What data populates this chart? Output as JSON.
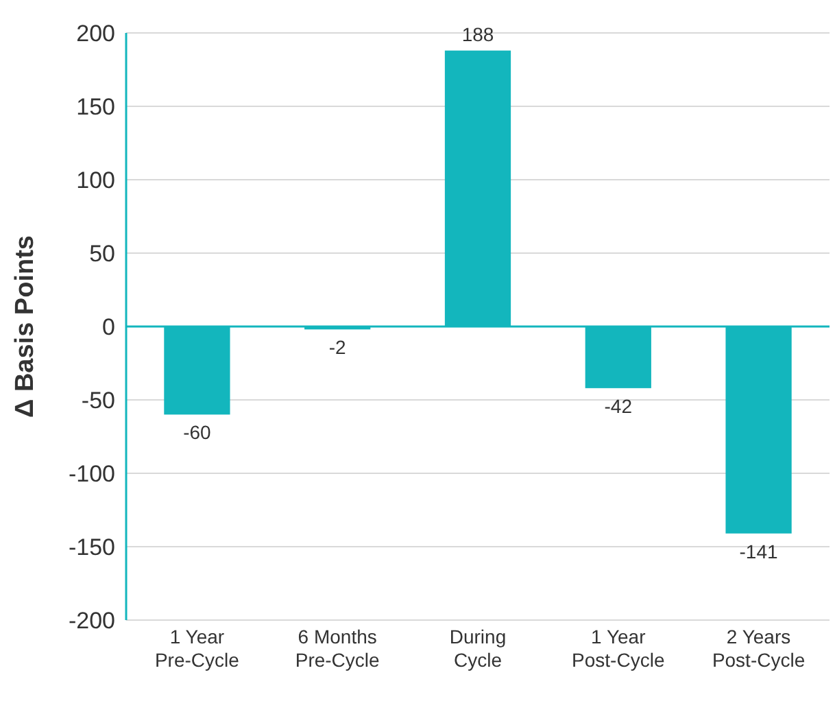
{
  "chart_data": {
    "type": "bar",
    "ylabel": "Δ Basis Points",
    "categories": [
      "1 Year\nPre-Cycle",
      "6 Months\nPre-Cycle",
      "During\nCycle",
      "1 Year\nPost-Cycle",
      "2 Years\nPost-Cycle"
    ],
    "values": [
      -60,
      -2,
      188,
      -42,
      -141
    ],
    "color": "#13b6bd",
    "ylim": [
      -200,
      200
    ],
    "yticks": [
      -200,
      -150,
      -100,
      -50,
      0,
      50,
      100,
      150,
      200
    ],
    "grid": "y",
    "data_labels": true,
    "ref_lines": [
      {
        "axis": "y",
        "value": 0,
        "color": "#13b6bd"
      }
    ]
  }
}
